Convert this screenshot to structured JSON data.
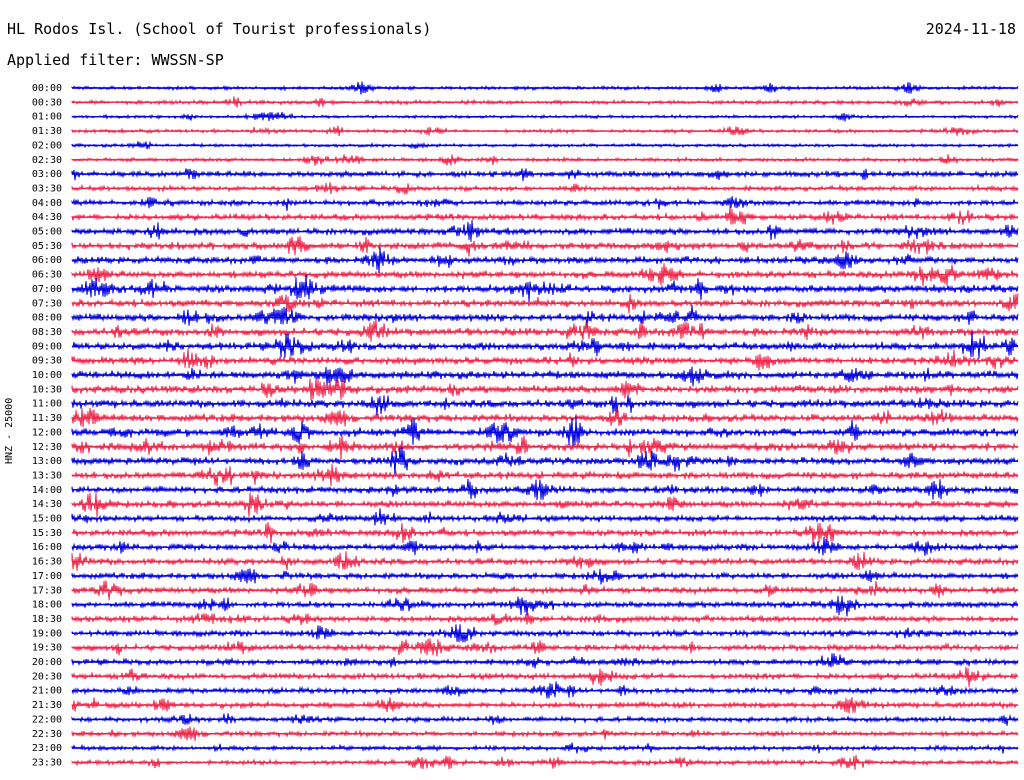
{
  "header": {
    "station": "HL Rodos Isl. (School of Tourist professionals)",
    "date": "2024-11-18",
    "filter": "Applied filter: WWSSN-SP",
    "channel_label": "HNZ - 25000"
  },
  "colors": {
    "blue_trace": "#0000e0",
    "red_trace": "#f0284c",
    "text": "#000000",
    "background": "#ffffff"
  },
  "chart_data": {
    "type": "line",
    "title": "HL Rodos Isl. (School of Tourist professionals)",
    "subtitle": "Applied filter: WWSSN-SP",
    "ylabel": "HNZ - 25000",
    "row_labels": [
      "00:00",
      "00:30",
      "01:00",
      "01:30",
      "02:00",
      "02:30",
      "03:00",
      "03:30",
      "04:00",
      "04:30",
      "05:00",
      "05:30",
      "06:00",
      "06:30",
      "07:00",
      "07:30",
      "08:00",
      "08:30",
      "09:00",
      "09:30",
      "10:00",
      "10:30",
      "11:00",
      "11:30",
      "12:00",
      "12:30",
      "13:00",
      "13:30",
      "14:00",
      "14:30",
      "15:00",
      "15:30",
      "16:00",
      "16:30",
      "17:00",
      "17:30",
      "18:00",
      "18:30",
      "19:00",
      "19:30",
      "20:00",
      "20:30",
      "21:00",
      "21:30",
      "22:00",
      "22:30",
      "23:00",
      "23:30"
    ],
    "row_colors": [
      "blue",
      "red"
    ],
    "row_activity": [
      0.25,
      0.3,
      0.2,
      0.25,
      0.2,
      0.3,
      0.55,
      0.45,
      0.55,
      0.6,
      0.7,
      0.75,
      0.7,
      0.75,
      0.8,
      0.75,
      0.8,
      0.8,
      0.8,
      0.8,
      0.8,
      0.85,
      0.85,
      0.8,
      0.85,
      0.8,
      0.75,
      0.75,
      0.7,
      0.7,
      0.6,
      0.65,
      0.65,
      0.65,
      0.6,
      0.65,
      0.6,
      0.6,
      0.6,
      0.6,
      0.55,
      0.6,
      0.5,
      0.55,
      0.45,
      0.45,
      0.4,
      0.4
    ]
  }
}
